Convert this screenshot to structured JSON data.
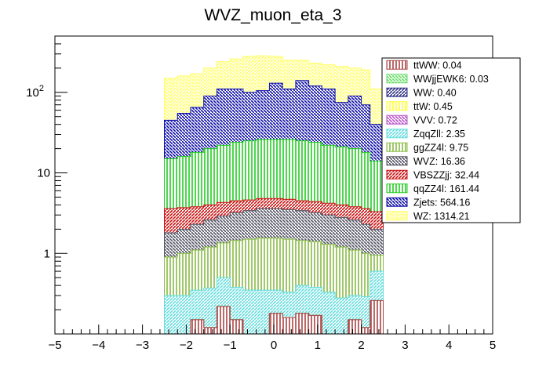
{
  "chart_data": {
    "type": "bar",
    "stacked": true,
    "title": "WVZ_muon_eta_3",
    "xlabel": "",
    "ylabel": "",
    "xlim": [
      -5,
      5
    ],
    "ylim": [
      0.1,
      500
    ],
    "yscale": "log",
    "bin_edges": [
      -2.5,
      -2.2,
      -1.9,
      -1.6,
      -1.3,
      -1.0,
      -0.7,
      -0.4,
      -0.1,
      0.2,
      0.5,
      0.8,
      1.1,
      1.4,
      1.7,
      2.0,
      2.2,
      2.5
    ],
    "x_ticks": [
      "−5",
      "−4",
      "−3",
      "−2",
      "−1",
      "0",
      "1",
      "2",
      "3",
      "4",
      "5"
    ],
    "y_ticks": [
      {
        "value": 1,
        "label": "1"
      },
      {
        "value": 10,
        "label": "10"
      },
      {
        "value": 100,
        "label": "10",
        "exponent": "2"
      }
    ],
    "legend_position": "right",
    "series": [
      {
        "name": "WZ",
        "legend": "WZ: 1314.21",
        "color": "#ffff66",
        "cumulative": [
          150,
          160,
          170,
          200,
          240,
          260,
          280,
          285,
          280,
          250,
          250,
          230,
          220,
          210,
          200,
          190,
          110
        ]
      },
      {
        "name": "Zjets",
        "legend": "Zjets: 564.16",
        "color": "#1010aa",
        "cumulative": [
          45,
          55,
          65,
          90,
          110,
          110,
          100,
          105,
          130,
          110,
          140,
          120,
          110,
          75,
          90,
          70,
          40
        ]
      },
      {
        "name": "qqZZ4l",
        "legend": "qqZZ4l: 161.44",
        "color": "#22cc22",
        "cumulative": [
          15,
          16,
          18,
          20,
          22,
          24,
          25,
          26,
          26,
          26,
          25,
          24,
          22,
          21,
          20,
          18,
          14
        ]
      },
      {
        "name": "VBSZZjj",
        "legend": "VBSZZjj: 32.44",
        "color": "#cc1111",
        "cumulative": [
          3.6,
          3.7,
          3.8,
          4.0,
          4.3,
          4.5,
          4.6,
          4.8,
          4.8,
          4.7,
          4.5,
          4.4,
          4.2,
          4.0,
          3.8,
          3.6,
          3.3
        ]
      },
      {
        "name": "WVZ",
        "legend": "WVZ: 16.36",
        "color": "#555566",
        "cumulative": [
          1.8,
          2.0,
          2.3,
          2.6,
          2.9,
          3.2,
          3.4,
          3.6,
          3.6,
          3.5,
          3.4,
          3.2,
          3.0,
          2.8,
          2.6,
          2.3,
          2.0
        ]
      },
      {
        "name": "ggZZ4l",
        "legend": "ggZZ4l: 9.75",
        "color": "#88bb44",
        "cumulative": [
          0.9,
          1.0,
          1.1,
          1.2,
          1.35,
          1.45,
          1.5,
          1.55,
          1.55,
          1.5,
          1.45,
          1.4,
          1.3,
          1.2,
          1.1,
          1.0,
          0.95
        ]
      },
      {
        "name": "ZqqZll",
        "legend": "ZqqZll: 2.35",
        "color": "#66dddd",
        "cumulative": [
          0.3,
          0.3,
          0.35,
          0.37,
          0.5,
          0.38,
          0.35,
          0.35,
          0.35,
          0.33,
          0.4,
          0.38,
          0.33,
          0.28,
          0.3,
          0.29,
          0.6
        ]
      },
      {
        "name": "VVV",
        "legend": "VVV: 0.72",
        "color": "#bb55cc",
        "cumulative": [
          0.08,
          0.08,
          0.15,
          0.12,
          0.2,
          0.15,
          0.1,
          0.1,
          0.18,
          0.16,
          0.18,
          0.17,
          0.1,
          0.1,
          0.15,
          0.12,
          0.22
        ]
      },
      {
        "name": "ttW",
        "legend": "ttW: 0.45",
        "color": "#ffff33",
        "cumulative": [
          0.08,
          0.08,
          0.15,
          0.12,
          0.22,
          0.15,
          0.1,
          0.1,
          0.18,
          0.16,
          0.18,
          0.17,
          0.1,
          0.1,
          0.15,
          0.12,
          0.2
        ]
      },
      {
        "name": "WW",
        "legend": "WW: 0.40",
        "color": "#333388",
        "cumulative": [
          0.08,
          0.08,
          0.15,
          0.12,
          0.22,
          0.15,
          0.1,
          0.1,
          0.18,
          0.16,
          0.18,
          0.17,
          0.1,
          0.1,
          0.15,
          0.12,
          0.22
        ]
      },
      {
        "name": "WWjjEWK6",
        "legend": "WWjjEWK6: 0.03",
        "color": "#66dd66",
        "cumulative": [
          0.08,
          0.08,
          0.15,
          0.12,
          0.22,
          0.15,
          0.1,
          0.1,
          0.18,
          0.16,
          0.18,
          0.17,
          0.1,
          0.1,
          0.15,
          0.12,
          0.22
        ]
      },
      {
        "name": "ttWW",
        "legend": "ttWW: 0.04",
        "color": "#aa4444",
        "cumulative": [
          0.08,
          0.08,
          0.15,
          0.12,
          0.22,
          0.15,
          0.1,
          0.1,
          0.18,
          0.16,
          0.18,
          0.17,
          0.1,
          0.1,
          0.15,
          0.12,
          0.26
        ]
      }
    ]
  }
}
